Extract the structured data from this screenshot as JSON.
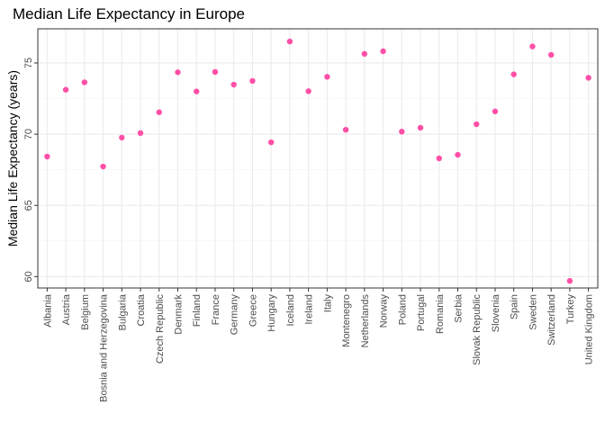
{
  "chart_data": {
    "type": "scatter",
    "title": "Median Life Expectancy in Europe",
    "xlabel": "",
    "ylabel": "Median Life Expectancy (years)",
    "ylim": [
      59.2,
      77.4
    ],
    "yticks": [
      60,
      65,
      70,
      75
    ],
    "grid": true,
    "point_color": "#ff4fa6",
    "categories": [
      "Albania",
      "Austria",
      "Belgium",
      "Bosnia and Herzegovina",
      "Bulgaria",
      "Croatia",
      "Czech Republic",
      "Denmark",
      "Finland",
      "France",
      "Germany",
      "Greece",
      "Hungary",
      "Iceland",
      "Ireland",
      "Italy",
      "Montenegro",
      "Netherlands",
      "Norway",
      "Poland",
      "Portugal",
      "Romania",
      "Serbia",
      "Slovak Republic",
      "Slovenia",
      "Spain",
      "Sweden",
      "Switzerland",
      "Turkey",
      "United Kingdom"
    ],
    "values": [
      68.43,
      73.12,
      73.64,
      67.73,
      69.76,
      70.08,
      71.54,
      74.35,
      73.0,
      74.37,
      73.48,
      73.74,
      69.43,
      76.51,
      73.02,
      74.03,
      70.31,
      75.64,
      75.82,
      70.18,
      70.45,
      68.3,
      68.55,
      70.7,
      71.6,
      74.2,
      76.16,
      75.57,
      59.7,
      73.96
    ]
  }
}
